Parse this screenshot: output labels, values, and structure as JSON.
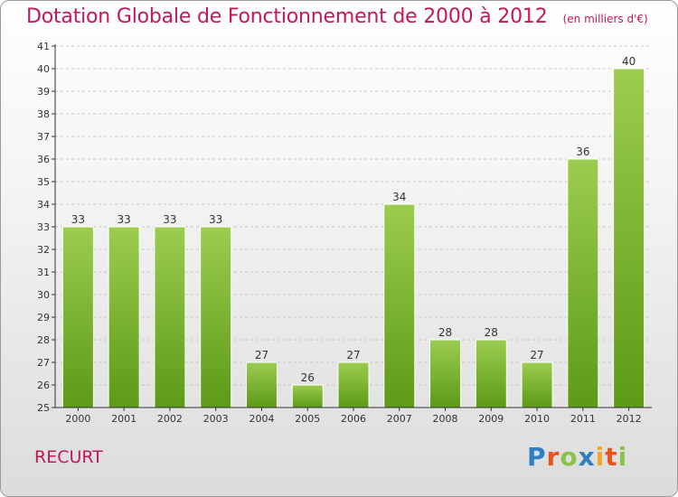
{
  "header": {
    "title": "Dotation Globale de Fonctionnement de 2000 à 2012",
    "subtitle": "(en milliers d'€)"
  },
  "footer": {
    "commune": "RECURT",
    "logo_text": "Proxiti"
  },
  "colors": {
    "bar_light": "#9ccc50",
    "bar_dark": "#5c9a18",
    "title": "#c2185b",
    "axis": "#333333",
    "grid": "#c8c8c8"
  },
  "chart_data": {
    "type": "bar",
    "categories": [
      "2000",
      "2001",
      "2002",
      "2003",
      "2004",
      "2005",
      "2006",
      "2007",
      "2008",
      "2009",
      "2010",
      "2011",
      "2012"
    ],
    "values": [
      33,
      33,
      33,
      33,
      27,
      26,
      27,
      34,
      28,
      28,
      27,
      36,
      40
    ],
    "title": "Dotation Globale de Fonctionnement de 2000 à 2012",
    "subtitle": "(en milliers d'€)",
    "xlabel": "",
    "ylabel": "",
    "ylim": [
      25,
      41
    ],
    "yticks": [
      25,
      26,
      27,
      28,
      29,
      30,
      31,
      32,
      33,
      34,
      35,
      36,
      37,
      38,
      39,
      40,
      41
    ],
    "grid": true,
    "legend": "none"
  }
}
